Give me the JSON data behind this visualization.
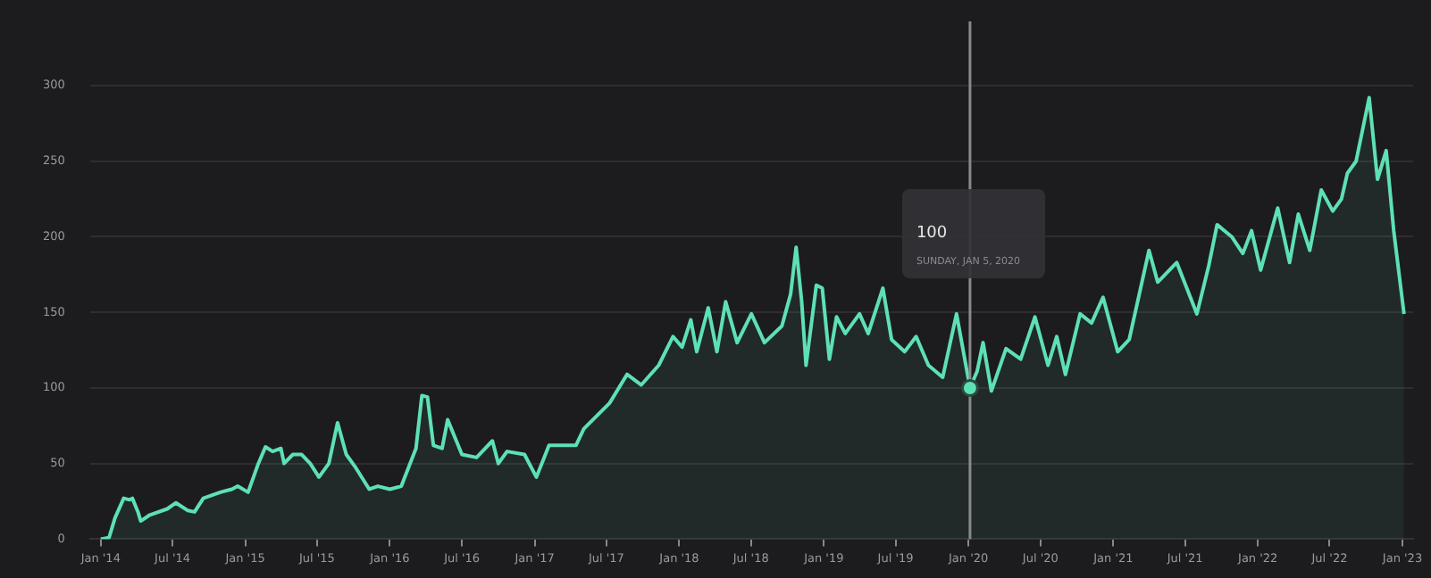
{
  "chart_data": {
    "type": "area",
    "x": [
      "2014-01-01",
      "2014-01-22",
      "2014-02-06",
      "2014-02-28",
      "2014-03-15",
      "2014-03-22",
      "2014-04-05",
      "2014-04-12",
      "2014-05-05",
      "2014-06-18",
      "2014-07-10",
      "2014-08-08",
      "2014-08-26",
      "2014-09-17",
      "2014-10-30",
      "2014-11-28",
      "2014-12-13",
      "2015-01-08",
      "2015-02-03",
      "2015-02-21",
      "2015-03-11",
      "2015-04-01",
      "2015-04-09",
      "2015-05-01",
      "2015-05-23",
      "2015-06-14",
      "2015-07-06",
      "2015-07-31",
      "2015-08-22",
      "2015-09-13",
      "2015-10-05",
      "2015-11-10",
      "2015-12-02",
      "2016-01-01",
      "2016-01-30",
      "2016-03-07",
      "2016-03-22",
      "2016-04-05",
      "2016-04-20",
      "2016-05-12",
      "2016-05-26",
      "2016-07-01",
      "2016-08-07",
      "2016-09-16",
      "2016-10-01",
      "2016-10-23",
      "2016-12-06",
      "2017-01-05",
      "2017-02-06",
      "2017-04-15",
      "2017-05-05",
      "2017-07-09",
      "2017-08-22",
      "2017-09-27",
      "2017-11-10",
      "2017-12-16",
      "2018-01-08",
      "2018-01-30",
      "2018-02-14",
      "2018-03-15",
      "2018-04-06",
      "2018-04-28",
      "2018-05-27",
      "2018-07-02",
      "2018-08-04",
      "2018-09-17",
      "2018-10-09",
      "2018-10-23",
      "2018-11-06",
      "2018-11-17",
      "2018-12-13",
      "2018-12-28",
      "2019-01-15",
      "2019-02-02",
      "2019-02-24",
      "2019-04-01",
      "2019-04-23",
      "2019-05-30",
      "2019-06-21",
      "2019-07-24",
      "2019-08-22",
      "2019-09-22",
      "2019-10-28",
      "2019-12-02",
      "2020-01-05",
      "2020-01-23",
      "2020-02-07",
      "2020-02-28",
      "2020-04-05",
      "2020-05-12",
      "2020-06-17",
      "2020-07-20",
      "2020-08-11",
      "2020-09-02",
      "2020-10-09",
      "2020-11-07",
      "2020-12-06",
      "2021-01-12",
      "2021-02-10",
      "2021-04-01",
      "2021-04-23",
      "2021-06-10",
      "2021-07-31",
      "2021-08-30",
      "2021-09-20",
      "2021-10-27",
      "2021-11-24",
      "2021-12-16",
      "2022-01-08",
      "2022-02-20",
      "2022-03-22",
      "2022-04-13",
      "2022-05-12",
      "2022-06-10",
      "2022-07-09",
      "2022-07-31",
      "2022-08-15",
      "2022-09-06",
      "2022-10-09",
      "2022-10-30",
      "2022-11-21",
      "2022-12-10",
      "2023-01-05"
    ],
    "series": [
      {
        "color": "#5ee0b5",
        "values": [
          0,
          1,
          14,
          27,
          26,
          27,
          18,
          12,
          16,
          20,
          24,
          19,
          18,
          27,
          31,
          33,
          35,
          31,
          50,
          61,
          58,
          60,
          50,
          56,
          56,
          50,
          41,
          50,
          77,
          56,
          48,
          33,
          35,
          33,
          35,
          60,
          95,
          94,
          62,
          60,
          79,
          56,
          54,
          65,
          50,
          58,
          56,
          41,
          62,
          62,
          73,
          90,
          109,
          102,
          115,
          134,
          127,
          145,
          124,
          153,
          124,
          157,
          130,
          149,
          130,
          141,
          162,
          193,
          157,
          115,
          168,
          166,
          119,
          147,
          136,
          149,
          136,
          166,
          132,
          124,
          134,
          115,
          107,
          149,
          100,
          111,
          130,
          98,
          126,
          119,
          147,
          115,
          134,
          109,
          149,
          143,
          160,
          124,
          132,
          191,
          170,
          183,
          149,
          181,
          208,
          200,
          189,
          204,
          178,
          219,
          183,
          215,
          191,
          231,
          217,
          225,
          242,
          250,
          292,
          238,
          257,
          204,
          149
        ]
      }
    ],
    "xlim": [
      "2013-12-05",
      "2023-01-28"
    ],
    "xticks": [
      {
        "value": "2014-01-01",
        "label": "Jan '14"
      },
      {
        "value": "2014-07-01",
        "label": "Jul '14"
      },
      {
        "value": "2015-01-01",
        "label": "Jan '15"
      },
      {
        "value": "2015-07-01",
        "label": "Jul '15"
      },
      {
        "value": "2016-01-01",
        "label": "Jan '16"
      },
      {
        "value": "2016-07-01",
        "label": "Jul '16"
      },
      {
        "value": "2017-01-01",
        "label": "Jan '17"
      },
      {
        "value": "2017-07-01",
        "label": "Jul '17"
      },
      {
        "value": "2018-01-01",
        "label": "Jan '18"
      },
      {
        "value": "2018-07-01",
        "label": "Jul '18"
      },
      {
        "value": "2019-01-01",
        "label": "Jan '19"
      },
      {
        "value": "2019-07-01",
        "label": "Jul '19"
      },
      {
        "value": "2020-01-01",
        "label": "Jan '20"
      },
      {
        "value": "2020-07-01",
        "label": "Jul '20"
      },
      {
        "value": "2021-01-01",
        "label": "Jan '21"
      },
      {
        "value": "2021-07-01",
        "label": "Jul '21"
      },
      {
        "value": "2022-01-01",
        "label": "Jan '22"
      },
      {
        "value": "2022-07-01",
        "label": "Jul '22"
      },
      {
        "value": "2023-01-01",
        "label": "Jan '23"
      }
    ],
    "ylim": [
      0,
      300
    ],
    "yticks": [
      0,
      50,
      100,
      150,
      200,
      250,
      300
    ],
    "grid": "y",
    "ref_lines": [
      {
        "axis": "x",
        "value": "2020-01-05",
        "color": "#8a8a8e"
      }
    ],
    "annotations": [
      "100",
      "SUNDAY, JAN 5, 2020"
    ]
  }
}
